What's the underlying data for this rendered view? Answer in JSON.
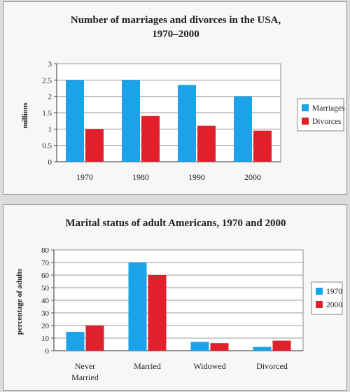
{
  "chart_data": [
    {
      "type": "bar",
      "title": "Number of marriages and divorces in the USA,",
      "title_line2": "1970–2000",
      "xlabel": "",
      "ylabel": "millions",
      "categories": [
        "1970",
        "1980",
        "1990",
        "2000"
      ],
      "ylim": [
        0,
        3
      ],
      "yticks": [
        "0",
        "0.5",
        "1",
        "1.5",
        "2",
        "2.5",
        "3"
      ],
      "grid": true,
      "legend_position": "right",
      "series": [
        {
          "name": "Marriages",
          "color": "#1aa3e8",
          "values": [
            2.5,
            2.5,
            2.35,
            2.0
          ]
        },
        {
          "name": "Divorces",
          "color": "#e0202a",
          "values": [
            1.0,
            1.4,
            1.1,
            0.95
          ]
        }
      ]
    },
    {
      "type": "bar",
      "title": "Marital status of adult Americans, 1970 and 2000",
      "xlabel": "",
      "ylabel": "percentage of adults",
      "categories": [
        "Never Married",
        "Married",
        "Widowed",
        "Divorced"
      ],
      "category_lines": [
        [
          "Never",
          "Married"
        ],
        [
          "Married"
        ],
        [
          "Widowed"
        ],
        [
          "Divorced"
        ]
      ],
      "ylim": [
        0,
        80
      ],
      "yticks": [
        "0",
        "10",
        "20",
        "30",
        "40",
        "50",
        "60",
        "70",
        "80"
      ],
      "grid": true,
      "legend_position": "right",
      "series": [
        {
          "name": "1970",
          "color": "#1aa3e8",
          "values": [
            15,
            70,
            7,
            3
          ]
        },
        {
          "name": "2000",
          "color": "#e0202a",
          "values": [
            20,
            60,
            6,
            8
          ]
        }
      ]
    }
  ]
}
